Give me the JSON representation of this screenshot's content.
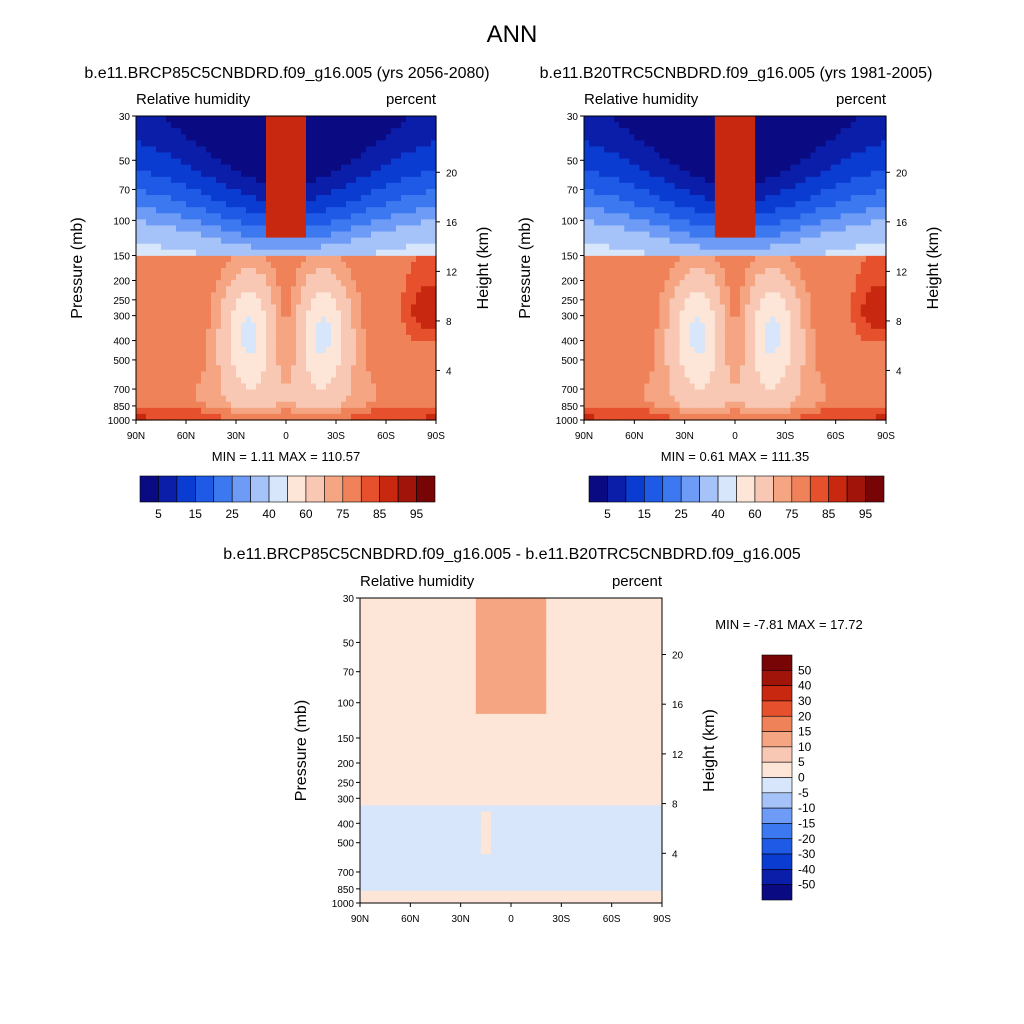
{
  "figure": {
    "title": "ANN"
  },
  "scale": {
    "diverging_colors": [
      "#0a0a82",
      "#0a1eaa",
      "#0a3cd2",
      "#1e5ae6",
      "#3c78f0",
      "#6e9bf5",
      "#a5c3f8",
      "#d7e6fa",
      "#fde6d7",
      "#f8c8b4",
      "#f5a582",
      "#f0825a",
      "#e6502d",
      "#c8280f",
      "#a0140a",
      "#780505"
    ]
  },
  "chart_data": [
    {
      "type": "heatmap",
      "title": "b.e11.BRCP85C5CNBDRD.f09_g16.005 (yrs 2056-2080)",
      "left_label": "Relative humidity",
      "right_label": "percent",
      "ylabel": "Pressure (mb)",
      "y2label": "Height (km)",
      "x_ticks": [
        "90N",
        "60N",
        "30N",
        "0",
        "30S",
        "60S",
        "90S"
      ],
      "y_ticks": [
        "30",
        "50",
        "70",
        "100",
        "150",
        "200",
        "250",
        "300",
        "400",
        "500",
        "700",
        "850",
        "1000"
      ],
      "y2_ticks": [
        "20",
        "16",
        "12",
        "8",
        "4"
      ],
      "stats": "MIN =   1.11  MAX = 110.57",
      "colorbar_labels": [
        "5",
        "15",
        "25",
        "40",
        "60",
        "75",
        "85",
        "95"
      ],
      "ylim": [
        1000,
        30
      ],
      "xlim": [
        90,
        -90
      ]
    },
    {
      "type": "heatmap",
      "title": "b.e11.B20TRC5CNBDRD.f09_g16.005 (yrs 1981-2005)",
      "left_label": "Relative humidity",
      "right_label": "percent",
      "ylabel": "Pressure (mb)",
      "y2label": "Height (km)",
      "x_ticks": [
        "90N",
        "60N",
        "30N",
        "0",
        "30S",
        "60S",
        "90S"
      ],
      "y_ticks": [
        "30",
        "50",
        "70",
        "100",
        "150",
        "200",
        "250",
        "300",
        "400",
        "500",
        "700",
        "850",
        "1000"
      ],
      "y2_ticks": [
        "20",
        "16",
        "12",
        "8",
        "4"
      ],
      "stats": "MIN =   0.61  MAX = 111.35",
      "colorbar_labels": [
        "5",
        "15",
        "25",
        "40",
        "60",
        "75",
        "85",
        "95"
      ],
      "ylim": [
        1000,
        30
      ],
      "xlim": [
        90,
        -90
      ]
    },
    {
      "type": "heatmap",
      "title": "b.e11.BRCP85C5CNBDRD.f09_g16.005 - b.e11.B20TRC5CNBDRD.f09_g16.005",
      "left_label": "Relative humidity",
      "right_label": "percent",
      "ylabel": "Pressure (mb)",
      "y2label": "Height (km)",
      "x_ticks": [
        "90N",
        "60N",
        "30N",
        "0",
        "30S",
        "60S",
        "90S"
      ],
      "y_ticks": [
        "30",
        "50",
        "70",
        "100",
        "150",
        "200",
        "250",
        "300",
        "400",
        "500",
        "700",
        "850",
        "1000"
      ],
      "y2_ticks": [
        "20",
        "16",
        "12",
        "8",
        "4"
      ],
      "stats": "MIN =  -7.81  MAX =  17.72",
      "colorbar_labels": [
        "50",
        "40",
        "30",
        "20",
        "15",
        "10",
        "5",
        "0",
        "-5",
        "-10",
        "-15",
        "-20",
        "-30",
        "-40",
        "-50"
      ],
      "ylim": [
        1000,
        30
      ],
      "xlim": [
        90,
        -90
      ]
    }
  ]
}
